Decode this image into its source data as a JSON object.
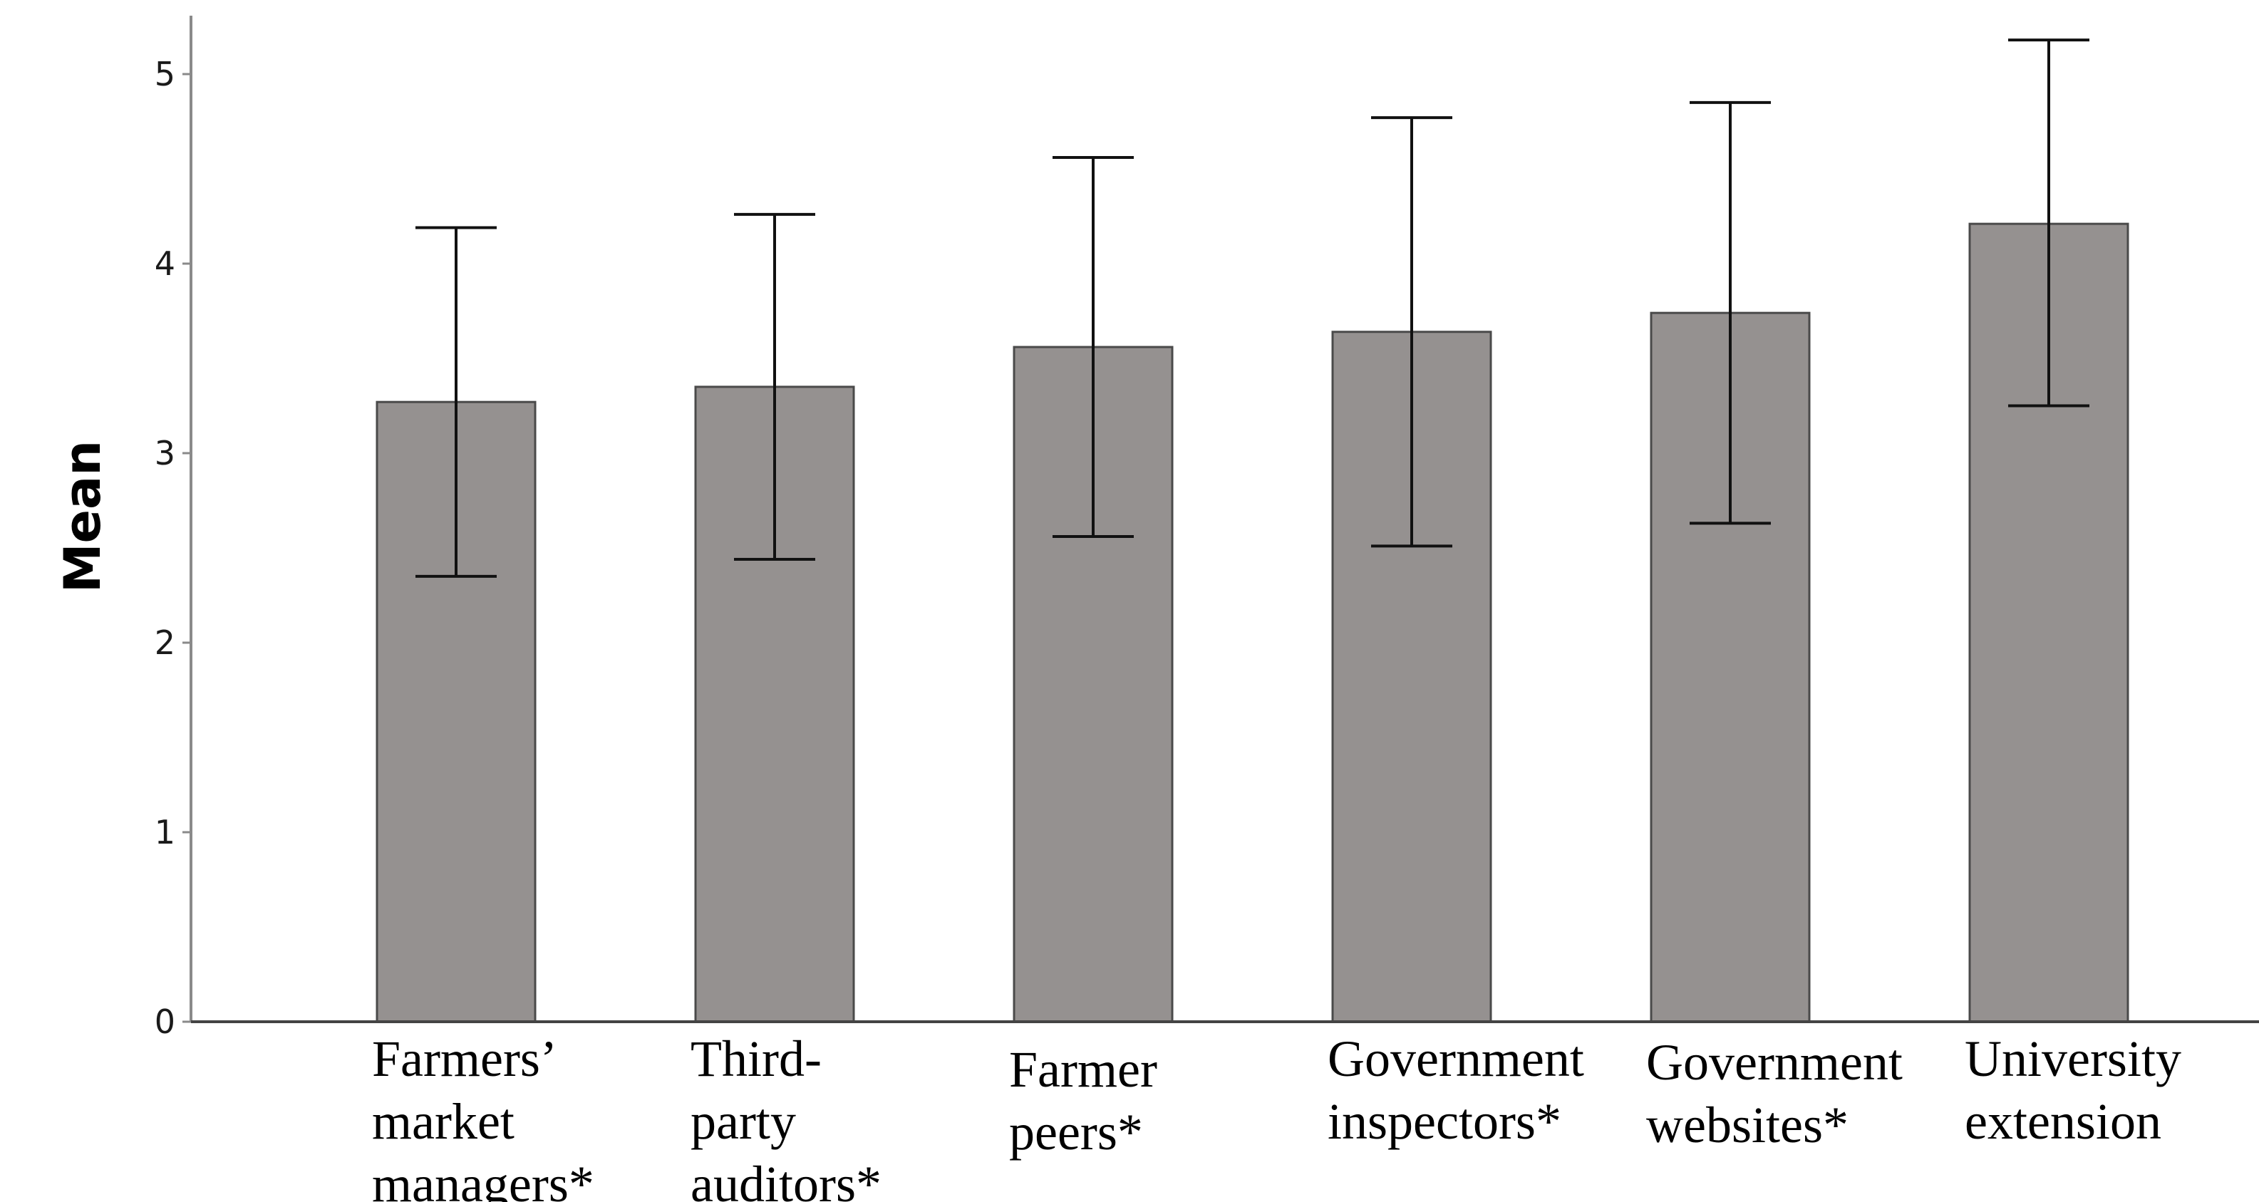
{
  "chart_data": {
    "type": "bar",
    "title": "",
    "xlabel": "",
    "ylabel": "Mean",
    "ylim": [
      0,
      5.28
    ],
    "yticks": [
      0,
      1,
      2,
      3,
      4,
      5
    ],
    "grid": false,
    "bar_color": "#959190",
    "bar_edge_color": "#4a4a4a",
    "categories": [
      [
        "Farmers’",
        "market",
        "managers*"
      ],
      [
        "Third-",
        "party",
        "auditors*"
      ],
      [
        "Farmer",
        "peers*"
      ],
      [
        "Government",
        "inspectors*"
      ],
      [
        "Government",
        "websites*"
      ],
      [
        "University",
        "extension"
      ]
    ],
    "values": [
      3.27,
      3.35,
      3.56,
      3.64,
      3.74,
      4.21
    ],
    "error_low": [
      2.35,
      2.44,
      2.56,
      2.51,
      2.63,
      3.25
    ],
    "error_high": [
      4.19,
      4.26,
      4.56,
      4.77,
      4.85,
      5.18
    ]
  }
}
